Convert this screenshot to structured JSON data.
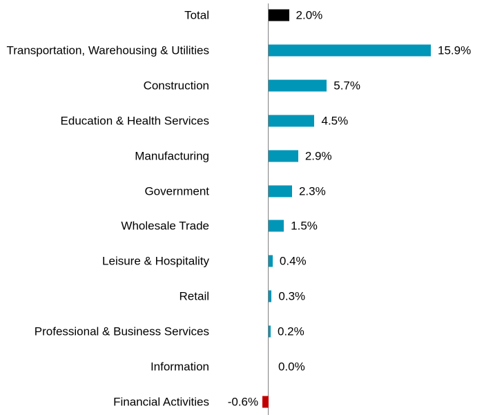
{
  "chart_data": {
    "type": "hbar",
    "categories": [
      "Total",
      "Transportation, Warehousing & Utilities",
      "Construction",
      "Education & Health Services",
      "Manufacturing",
      "Government",
      "Wholesale Trade",
      "Leisure & Hospitality",
      "Retail",
      "Professional & Business Services",
      "Information",
      "Financial Activities"
    ],
    "values": [
      2.0,
      15.9,
      5.7,
      4.5,
      2.9,
      2.3,
      1.5,
      0.4,
      0.3,
      0.2,
      0.0,
      -0.6
    ],
    "value_labels": [
      "2.0%",
      "15.9%",
      "5.7%",
      "4.5%",
      "2.9%",
      "2.3%",
      "1.5%",
      "0.4%",
      "0.3%",
      "0.2%",
      "0.0%",
      "-0.6%"
    ],
    "colors": [
      "#000000",
      "#0096b8",
      "#0096b8",
      "#0096b8",
      "#0096b8",
      "#0096b8",
      "#0096b8",
      "#0096b8",
      "#0096b8",
      "#0096b8",
      "#0096b8",
      "#c00000"
    ],
    "xlim": [
      -1,
      16
    ]
  }
}
